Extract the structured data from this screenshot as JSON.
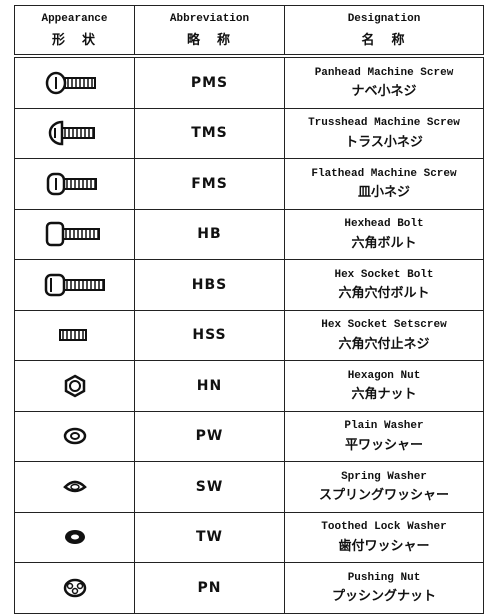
{
  "header": {
    "appearance": {
      "en": "Appearance",
      "jp": "形　状"
    },
    "abbreviation": {
      "en": "Abbreviation",
      "jp": "略　称"
    },
    "designation": {
      "en": "Designation",
      "jp": "名　称"
    }
  },
  "table": {
    "rows": [
      {
        "abbreviation": "PMS",
        "en": "Panhead Machine Screw",
        "jp": "ナベ小ネジ"
      },
      {
        "abbreviation": "TMS",
        "en": "Trusshead Machine Screw",
        "jp": "トラス小ネジ"
      },
      {
        "abbreviation": "FMS",
        "en": "Flathead Machine Screw",
        "jp": "皿小ネジ"
      },
      {
        "abbreviation": "HB",
        "en": "Hexhead Bolt",
        "jp": "六角ボルト"
      },
      {
        "abbreviation": "HBS",
        "en": "Hex Socket Bolt",
        "jp": "六角穴付ボルト"
      },
      {
        "abbreviation": "HSS",
        "en": "Hex Socket Setscrew",
        "jp": "六角穴付止ネジ"
      },
      {
        "abbreviation": "HN",
        "en": "Hexagon Nut",
        "jp": "六角ナット"
      },
      {
        "abbreviation": "PW",
        "en": "Plain Washer",
        "jp": "平ワッシャー"
      },
      {
        "abbreviation": "SW",
        "en": "Spring Washer",
        "jp": "スプリングワッシャー"
      },
      {
        "abbreviation": "TW",
        "en": "Toothed Lock Washer",
        "jp": "歯付ワッシャー"
      },
      {
        "abbreviation": "PN",
        "en": "Pushing Nut",
        "jp": "プッシングナット"
      }
    ]
  }
}
